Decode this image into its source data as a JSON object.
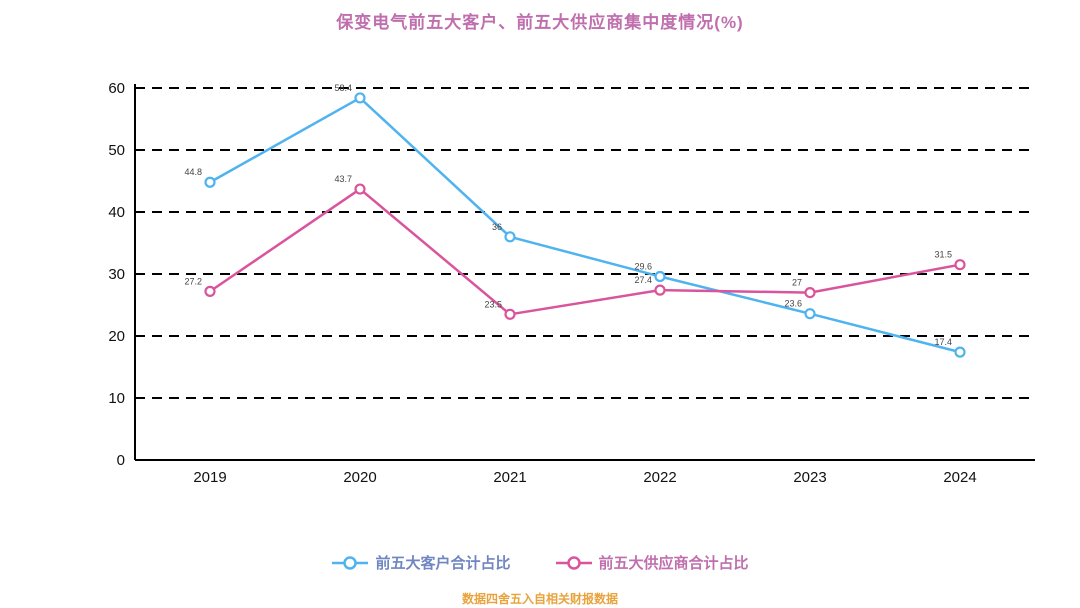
{
  "title": "保变电气前五大客户、前五大供应商集中度情况(%)",
  "footnote": "数据四舍五入自相关财报数据",
  "chart_data": {
    "type": "line",
    "x": [
      "2019",
      "2020",
      "2021",
      "2022",
      "2023",
      "2024"
    ],
    "series": [
      {
        "name": "前五大客户合计占比",
        "color": "#4fb3f0",
        "values": [
          44.8,
          58.4,
          36.0,
          29.6,
          23.6,
          17.4
        ]
      },
      {
        "name": "前五大供应商合计占比",
        "color": "#d9549c",
        "values": [
          27.2,
          43.7,
          23.5,
          27.4,
          27.0,
          31.5
        ]
      }
    ],
    "ylim": [
      0,
      60
    ],
    "yticks": [
      0,
      10,
      20,
      30,
      40,
      50,
      60
    ],
    "grid": "horizontal-dashed",
    "legend_position": "bottom",
    "marker": "open-circle",
    "point_labels": true
  }
}
